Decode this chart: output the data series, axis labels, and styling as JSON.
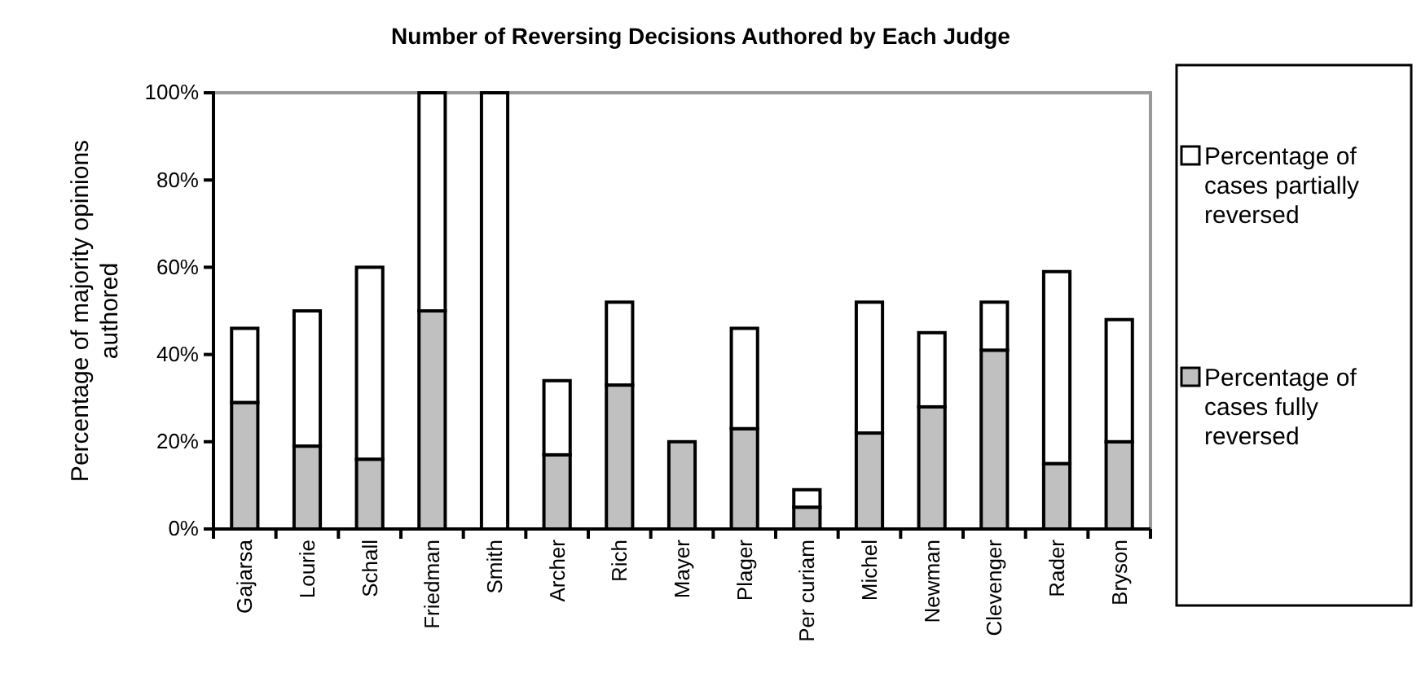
{
  "chart_data": {
    "type": "bar",
    "title": "Number of Reversing Decisions Authored by Each Judge",
    "ylabel": "Percentage of majority opinions authored",
    "categories": [
      "Gajarsa",
      "Lourie",
      "Schall",
      "Friedman",
      "Smith",
      "Archer",
      "Rich",
      "Mayer",
      "Plager",
      "Per curiam",
      "Michel",
      "Newman",
      "Clevenger",
      "Rader",
      "Bryson"
    ],
    "stacked": true,
    "series": [
      {
        "name": "Percentage of cases fully reversed",
        "color": "#c0c0c0",
        "values": [
          29,
          19,
          16,
          50,
          0,
          17,
          33,
          20,
          23,
          5,
          22,
          28,
          41,
          15,
          20
        ]
      },
      {
        "name": "Percentage of cases partially reversed",
        "color": "#ffffff",
        "values": [
          17,
          31,
          44,
          50,
          100,
          17,
          19,
          0,
          23,
          4,
          30,
          17,
          11,
          44,
          28
        ]
      }
    ],
    "ylim": [
      0,
      100
    ],
    "yticks": [
      {
        "value": 0,
        "label": "0%"
      },
      {
        "value": 20,
        "label": "20%"
      },
      {
        "value": 40,
        "label": "40%"
      },
      {
        "value": 60,
        "label": "60%"
      },
      {
        "value": 80,
        "label": "80%"
      },
      {
        "value": 100,
        "label": "100%"
      }
    ],
    "grid": false,
    "legend": "right"
  }
}
